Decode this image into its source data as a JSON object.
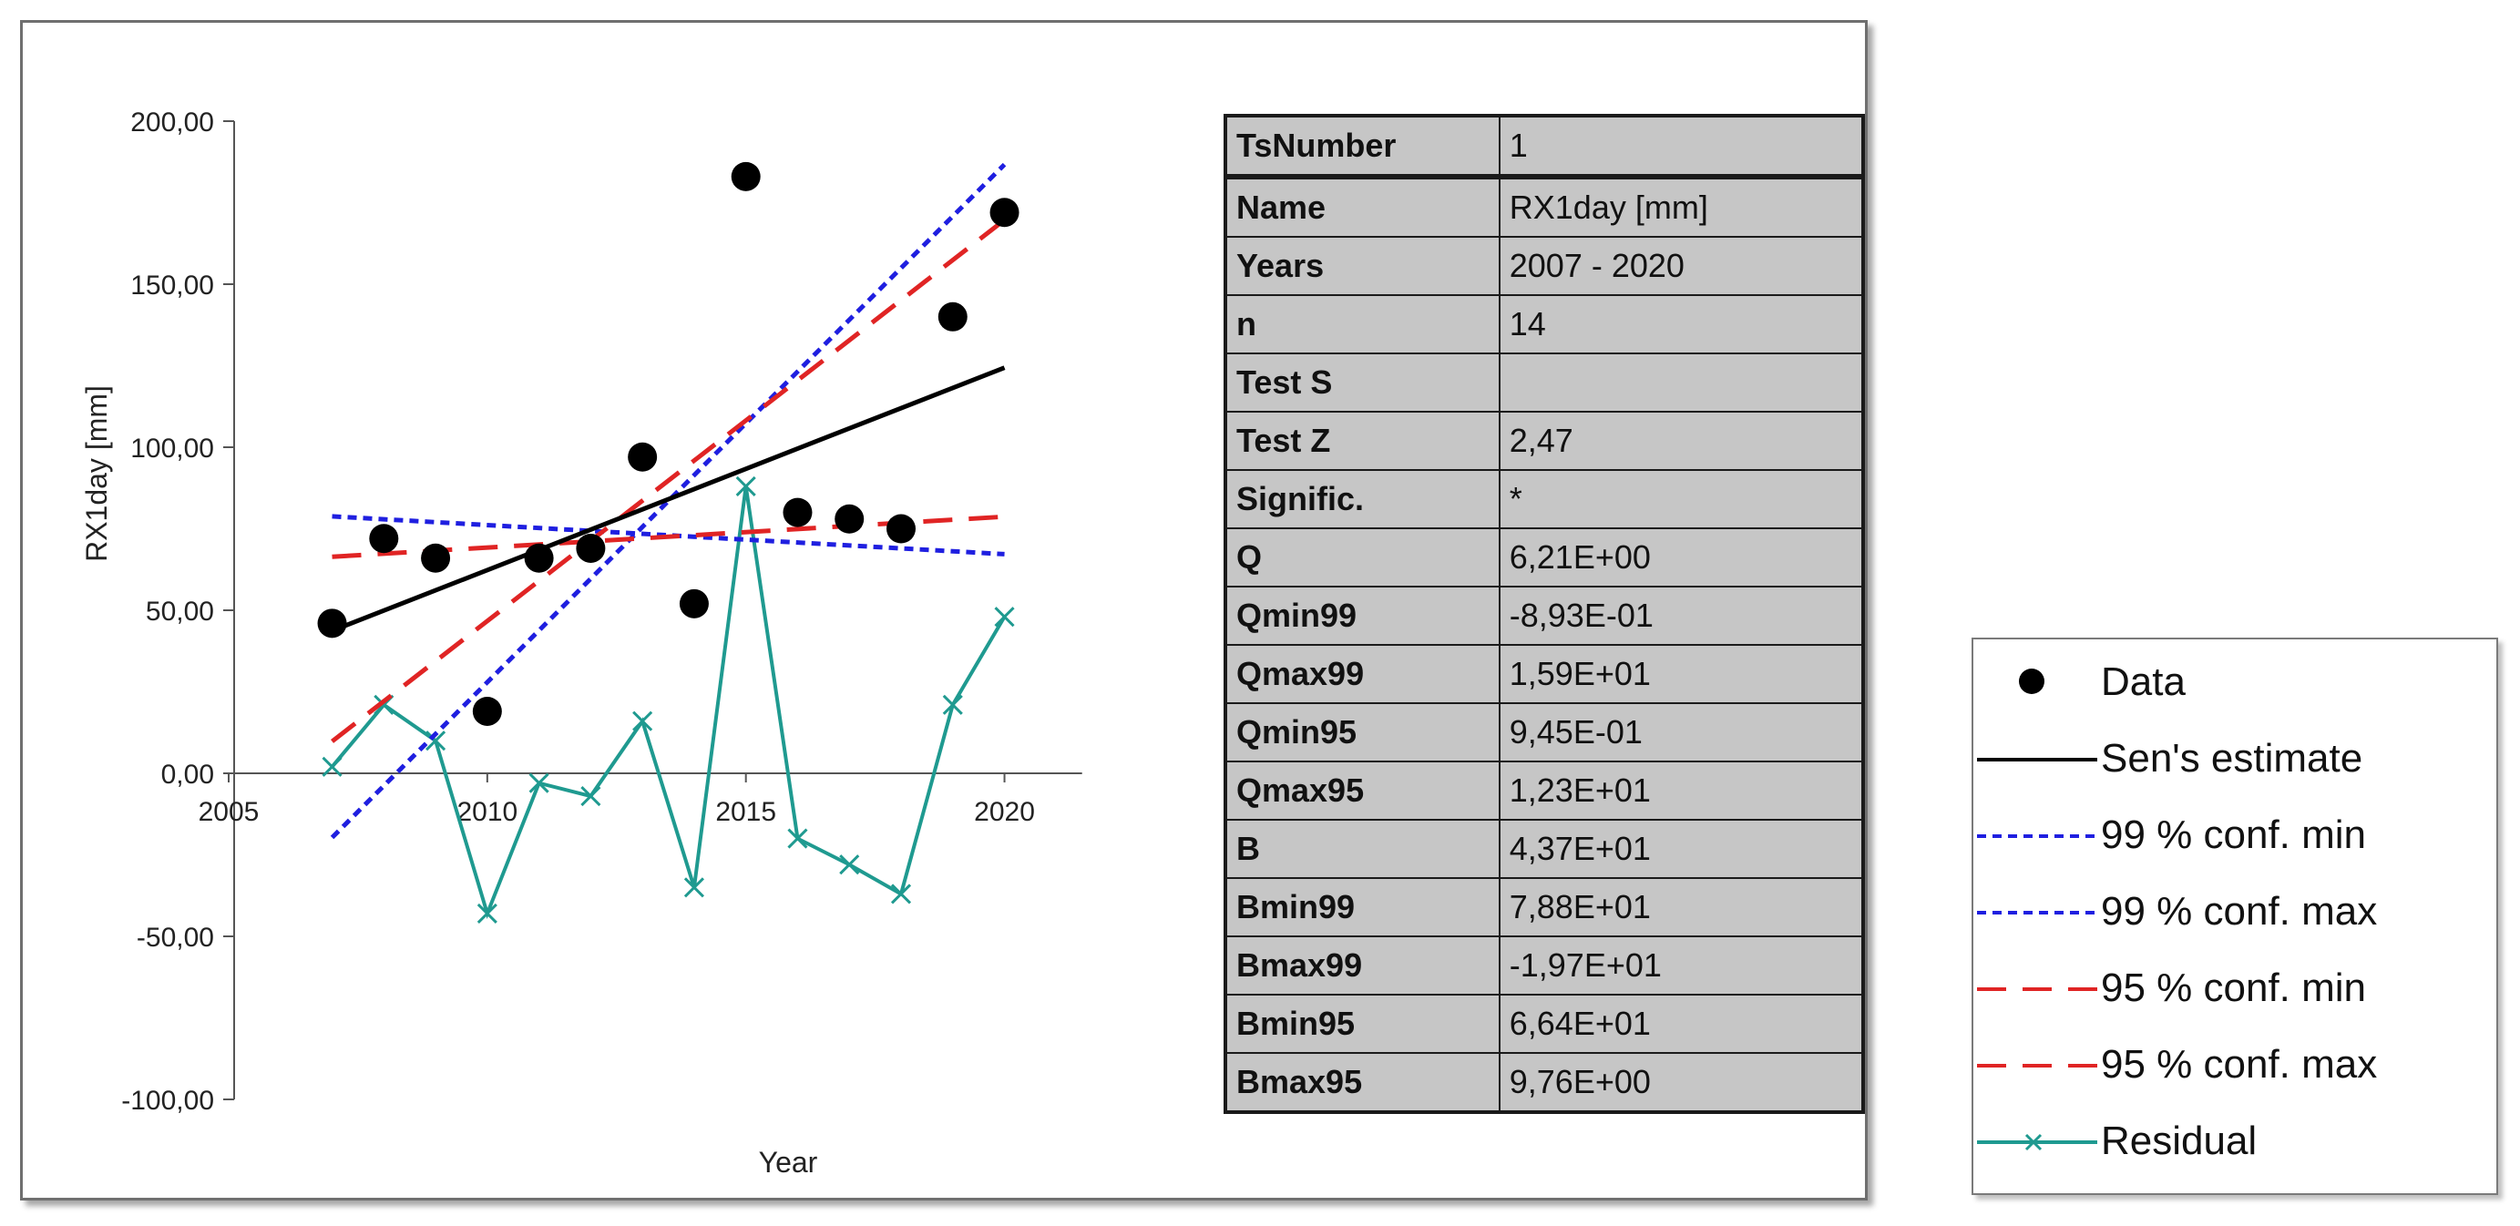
{
  "chart_data": {
    "type": "scatter",
    "xlabel": "Year",
    "ylabel": "RX1day [mm]",
    "xlim": [
      2005,
      2022
    ],
    "ylim": [
      -100,
      200
    ],
    "x_ticks": [
      {
        "value": 2005,
        "label": "2005"
      },
      {
        "value": 2010,
        "label": "2010"
      },
      {
        "value": 2015,
        "label": "2015"
      },
      {
        "value": 2020,
        "label": "2020"
      }
    ],
    "y_ticks": [
      {
        "value": 200,
        "label": "200,00"
      },
      {
        "value": 150,
        "label": "150,00"
      },
      {
        "value": 100,
        "label": "100,00"
      },
      {
        "value": 50,
        "label": "50,00"
      },
      {
        "value": 0,
        "label": "0,00"
      },
      {
        "value": -50,
        "label": "-50,00"
      },
      {
        "value": -100,
        "label": "-100,00"
      }
    ],
    "grid": false,
    "legend_position": "bottom-right, outside",
    "series": [
      {
        "name": "Data",
        "kind": "points",
        "color": "#000000",
        "x": [
          2007,
          2008,
          2009,
          2010,
          2011,
          2012,
          2013,
          2014,
          2015,
          2016,
          2017,
          2018,
          2019,
          2020
        ],
        "y": [
          46,
          72,
          66,
          19,
          66,
          69,
          97,
          52,
          183,
          80,
          78,
          75,
          140,
          172
        ]
      },
      {
        "name": "Sen's estimate",
        "kind": "line",
        "color": "#000000",
        "dash": "solid",
        "x": [
          2007,
          2020
        ],
        "y": [
          43.7,
          124.4
        ]
      },
      {
        "name": "99 % conf. min",
        "kind": "line",
        "color": "#1f1fe0",
        "dash": "short",
        "x": [
          2007,
          2020
        ],
        "y": [
          78.8,
          67.2
        ]
      },
      {
        "name": "99 % conf. max",
        "kind": "line",
        "color": "#1f1fe0",
        "dash": "short",
        "x": [
          2007,
          2020
        ],
        "y": [
          -19.7,
          186.7
        ]
      },
      {
        "name": "95 % conf. min",
        "kind": "line",
        "color": "#e02424",
        "dash": "long",
        "x": [
          2007,
          2020
        ],
        "y": [
          66.4,
          78.7
        ]
      },
      {
        "name": "95 % conf. max",
        "kind": "line",
        "color": "#e02424",
        "dash": "long",
        "x": [
          2007,
          2020
        ],
        "y": [
          9.8,
          169.7
        ]
      },
      {
        "name": "Residual",
        "kind": "line-markers",
        "color": "#1f9a90",
        "dash": "solid",
        "x": [
          2007,
          2008,
          2009,
          2010,
          2011,
          2012,
          2013,
          2014,
          2015,
          2016,
          2017,
          2018,
          2019,
          2020
        ],
        "y": [
          2,
          21,
          10,
          -43,
          -3,
          -7,
          16,
          -35,
          88,
          -20,
          -28,
          -37,
          21,
          48
        ]
      }
    ]
  },
  "stats_table": {
    "header": {
      "key": "TsNumber",
      "value": "1"
    },
    "rows": [
      {
        "key": "Name",
        "value": "RX1day [mm]"
      },
      {
        "key": "Years",
        "value": " 2007 -  2020"
      },
      {
        "key": "n",
        "value": "14"
      },
      {
        "key": "Test S",
        "value": ""
      },
      {
        "key": "Test Z",
        "value": "2,47"
      },
      {
        "key": "Signific.",
        "value": "*"
      },
      {
        "key": "Q",
        "value": "6,21E+00"
      },
      {
        "key": "Qmin99",
        "value": "-8,93E-01"
      },
      {
        "key": "Qmax99",
        "value": "1,59E+01"
      },
      {
        "key": "Qmin95",
        "value": "9,45E-01"
      },
      {
        "key": "Qmax95",
        "value": "1,23E+01"
      },
      {
        "key": "B",
        "value": "4,37E+01"
      },
      {
        "key": "Bmin99",
        "value": "7,88E+01"
      },
      {
        "key": "Bmax99",
        "value": "-1,97E+01"
      },
      {
        "key": "Bmin95",
        "value": "6,64E+01"
      },
      {
        "key": "Bmax95",
        "value": "9,76E+00"
      }
    ]
  },
  "legend": {
    "items": [
      {
        "label": "Data"
      },
      {
        "label": "Sen's estimate"
      },
      {
        "label": "99 % conf. min"
      },
      {
        "label": "99 % conf. max"
      },
      {
        "label": "95 % conf. min"
      },
      {
        "label": "95 % conf. max"
      },
      {
        "label": "Residual"
      }
    ]
  }
}
